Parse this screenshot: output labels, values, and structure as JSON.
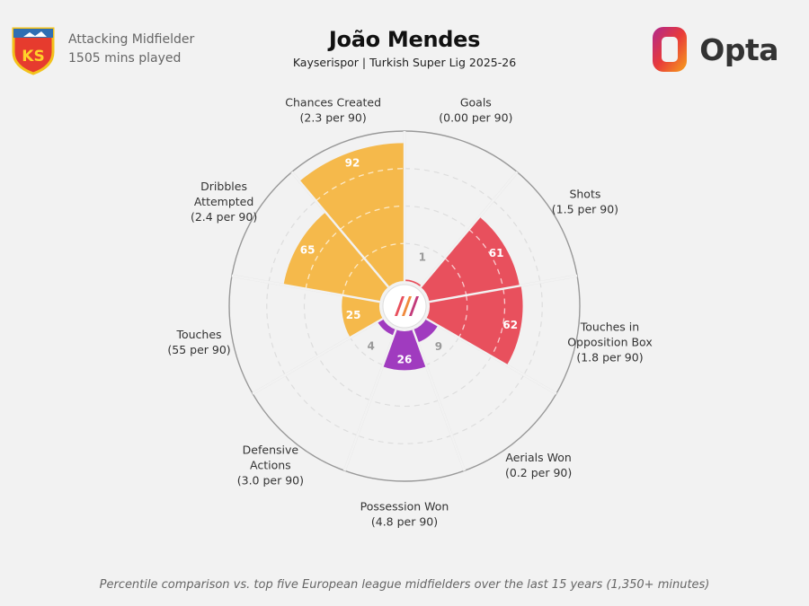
{
  "header": {
    "position": "Attacking Midfielder",
    "minutes": "1505 mins played",
    "player_name": "João Mendes",
    "subtitle": "Kayserispor | Turkish Super Lig 2025-26",
    "club_crest_text": "KS",
    "brand": "Opta"
  },
  "footnote": "Percentile comparison vs. top five European league midfielders over the last 15 years (1,350+ minutes)",
  "colors": {
    "attacking_orange": "#f5b94b",
    "shooting_red": "#e8505d",
    "defending_purple": "#a03bbf",
    "background": "#f2f2f2"
  },
  "chart_data": {
    "type": "radar",
    "scale_max": 100,
    "metrics": [
      {
        "line1": "Goals",
        "line2": "",
        "per90": "(0.00 per 90)",
        "percentile": 1,
        "group": "shooting"
      },
      {
        "line1": "Shots",
        "line2": "",
        "per90": "(1.5 per 90)",
        "percentile": 61,
        "group": "shooting"
      },
      {
        "line1": "Touches in",
        "line2": "Opposition Box",
        "per90": "(1.8 per 90)",
        "percentile": 62,
        "group": "shooting"
      },
      {
        "line1": "Aerials Won",
        "line2": "",
        "per90": "(0.2 per 90)",
        "percentile": 9,
        "group": "defending"
      },
      {
        "line1": "Possession Won",
        "line2": "",
        "per90": "(4.8 per 90)",
        "percentile": 26,
        "group": "defending"
      },
      {
        "line1": "Defensive",
        "line2": "Actions",
        "per90": "(3.0 per 90)",
        "percentile": 4,
        "group": "defending"
      },
      {
        "line1": "Touches",
        "line2": "",
        "per90": "(55 per 90)",
        "percentile": 25,
        "group": "attacking"
      },
      {
        "line1": "Dribbles",
        "line2": "Attempted",
        "per90": "(2.4 per 90)",
        "percentile": 65,
        "group": "attacking"
      },
      {
        "line1": "Chances Created",
        "line2": "",
        "per90": "(2.3 per 90)",
        "percentile": 92,
        "group": "attacking"
      }
    ]
  }
}
